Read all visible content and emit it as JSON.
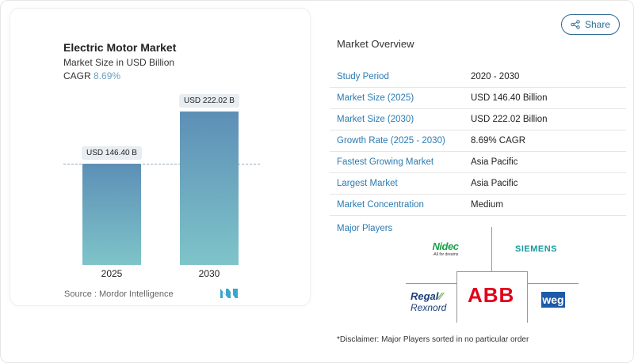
{
  "chart_data": {
    "type": "bar",
    "title": "Electric Motor Market",
    "subtitle": "Market Size in USD Billion",
    "cagr_label": "CAGR",
    "cagr_value": "8.69%",
    "categories": [
      "2025",
      "2030"
    ],
    "values": [
      146.4,
      222.02
    ],
    "data_labels": [
      "USD 146.40 B",
      "USD 222.02 B"
    ],
    "bar_gradient": [
      "#5d8fb6",
      "#7ec4c9"
    ],
    "grid": false,
    "source": "Source :  Mordor Intelligence"
  },
  "share_label": "Share",
  "overview": {
    "title": "Market Overview",
    "rows": [
      {
        "label": "Study Period",
        "value": "2020 - 2030"
      },
      {
        "label": "Market Size (2025)",
        "value": "USD 146.40 Billion"
      },
      {
        "label": "Market Size (2030)",
        "value": "USD 222.02 Billion"
      },
      {
        "label": "Growth Rate (2025 - 2030)",
        "value": "8.69% CAGR"
      },
      {
        "label": "Fastest Growing Market",
        "value": "Asia Pacific"
      },
      {
        "label": "Largest Market",
        "value": "Asia Pacific"
      },
      {
        "label": "Market Concentration",
        "value": "Medium"
      }
    ]
  },
  "players": {
    "title": "Major Players",
    "logos": [
      "Nidec - All for dreams",
      "SIEMENS",
      "Regal Rexnord",
      "ABB",
      "WEG"
    ],
    "disclaimer": "*Disclaimer: Major Players sorted in no particular order"
  }
}
